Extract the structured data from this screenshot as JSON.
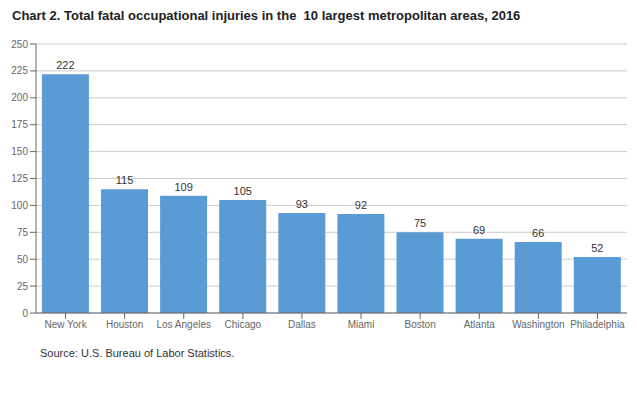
{
  "chart_data": {
    "type": "bar",
    "title": "Chart 2. Total fatal occupational injuries in the  10 largest metropolitan areas, 2016",
    "categories": [
      "New York",
      "Houston",
      "Los Angeles",
      "Chicago",
      "Dallas",
      "Miami",
      "Boston",
      "Atlanta",
      "Washington",
      "Philadelphia"
    ],
    "values": [
      222,
      115,
      109,
      105,
      93,
      92,
      75,
      69,
      66,
      52
    ],
    "color": "#5B9BD5",
    "ylim": [
      0,
      250
    ],
    "yticks": [
      0,
      25,
      50,
      75,
      100,
      125,
      150,
      175,
      200,
      225,
      250
    ],
    "grid": true,
    "data_labels": true,
    "annotations": [
      "Source: U.S. Bureau of Labor Statistics."
    ]
  }
}
